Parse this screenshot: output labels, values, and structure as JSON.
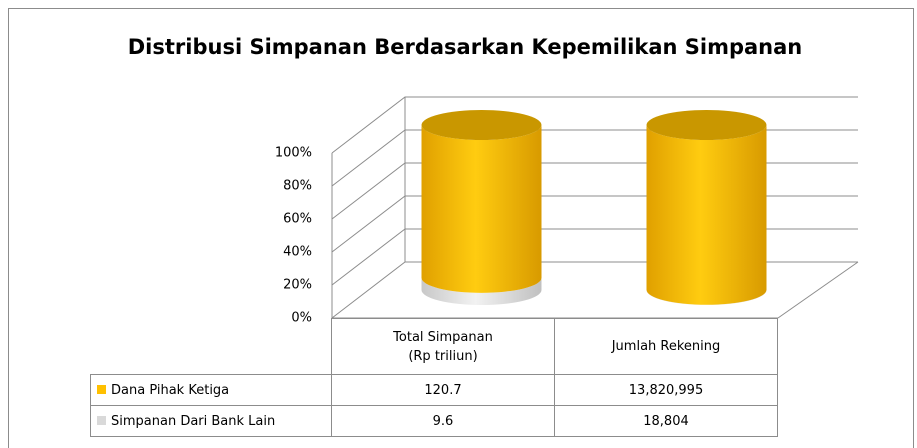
{
  "chart_data": {
    "type": "bar",
    "title": "Distribusi Simpanan Berdasarkan Kepemilikan Simpanan",
    "stacked": "percent",
    "categories": [
      "Total Simpanan\n(Rp triliun)",
      "Jumlah Rekening"
    ],
    "series": [
      {
        "name": "Dana Pihak Ketiga",
        "color": "#ffc000",
        "values": [
          120.7,
          13820995
        ],
        "value_labels": [
          "120.7",
          "13,820,995"
        ]
      },
      {
        "name": "Simpanan Dari Bank Lain",
        "color": "#d9d9d9",
        "values": [
          9.6,
          18804
        ],
        "value_labels": [
          "9.6",
          "18,804"
        ]
      }
    ],
    "ylim": [
      0,
      100
    ],
    "yticks": [
      {
        "value": 0,
        "label": "0%"
      },
      {
        "value": 20,
        "label": "20%"
      },
      {
        "value": 40,
        "label": "40%"
      },
      {
        "value": 60,
        "label": "60%"
      },
      {
        "value": 80,
        "label": "80%"
      },
      {
        "value": 100,
        "label": "100%"
      }
    ],
    "grid": true
  }
}
